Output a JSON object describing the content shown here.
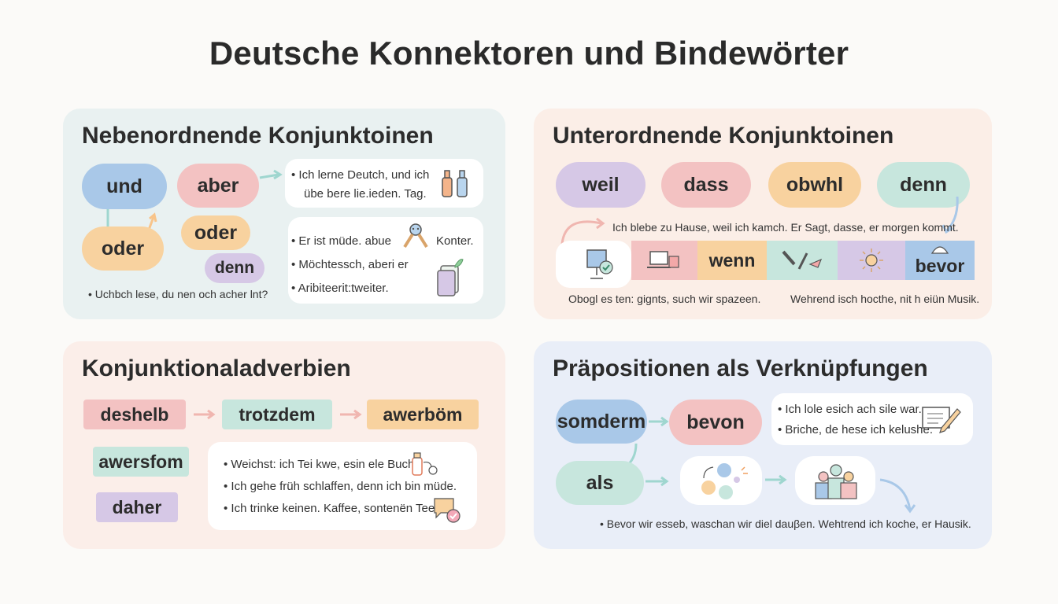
{
  "title": "Deutsche Konnektoren und Bindewörter",
  "colors": {
    "blue": "#a9c8e8",
    "pink": "#f3c2c2",
    "orange": "#f8d29f",
    "purple": "#d6c8e6",
    "mint": "#c7e6dd",
    "teal_arrow": "#9fd6cf",
    "pink_arrow": "#f0b6b0"
  },
  "panel1": {
    "title": "Nebenordnende Konjunktoinen",
    "pills": [
      "und",
      "aber",
      "oder",
      "oder",
      "denn"
    ],
    "card1": [
      "• Ich lerne Deutch,     und ich",
      "übe    bere lie.ieden. Tag."
    ],
    "card2": [
      "• Er ist müde.     abue",
      "Konter.",
      "• Möchtessch, aberi er",
      "• Aribiteerit:tweiter."
    ],
    "footnote": "• Uchbch lese, du nen och acher lnt?",
    "icons": [
      "bottles-icon",
      "people-network-icon",
      "document-leaf-icon"
    ]
  },
  "panel2": {
    "title": "Unterordnende Konjunktoinen",
    "pills": [
      "weil",
      "dass",
      "obwhl",
      "denn"
    ],
    "sentence": "Ich blebe zu Hause, weil ich kamch. Er Sagt, dasse, er morgen kommt.",
    "strip": [
      "wenn",
      "bevor"
    ],
    "caption_left": "Obogl es ten: gignts, such wir spazeen.",
    "caption_right": "Wehrend isch hocthe, nit h eiün Musik.",
    "icons": [
      "monitor-check-icon",
      "laptop-icon",
      "tools-icon",
      "sun-icon",
      "hat-icon"
    ]
  },
  "panel3": {
    "title": "Konjunktionaladverbien",
    "tags": [
      "deshelb",
      "trotzdem",
      "awerböm",
      "awersfom",
      "daher"
    ],
    "card": [
      "• Weichst: ich Tei kwe, esin ele Buch.",
      "• Ich gehe früh schlaffen, denn ich bin müde.",
      "• Ich trinke keinen. Kaffee, sontenën Tee."
    ],
    "icons": [
      "bottle-icon",
      "chat-bubble-icon"
    ]
  },
  "panel4": {
    "title": "Präpositionen als Verknüpfungen",
    "pills": [
      "somderm",
      "bevon",
      "als"
    ],
    "card": [
      "• Ich lole   esich ach sile war.",
      "• Briche, de hese  ich kelushe."
    ],
    "footnote": "• Bevor wir esseb, waschan wir diel dauβen.  Wehtrend ich koche, er Hausik.",
    "icons": [
      "notepad-pencil-icon",
      "circles-cycle-icon",
      "team-icon"
    ]
  }
}
